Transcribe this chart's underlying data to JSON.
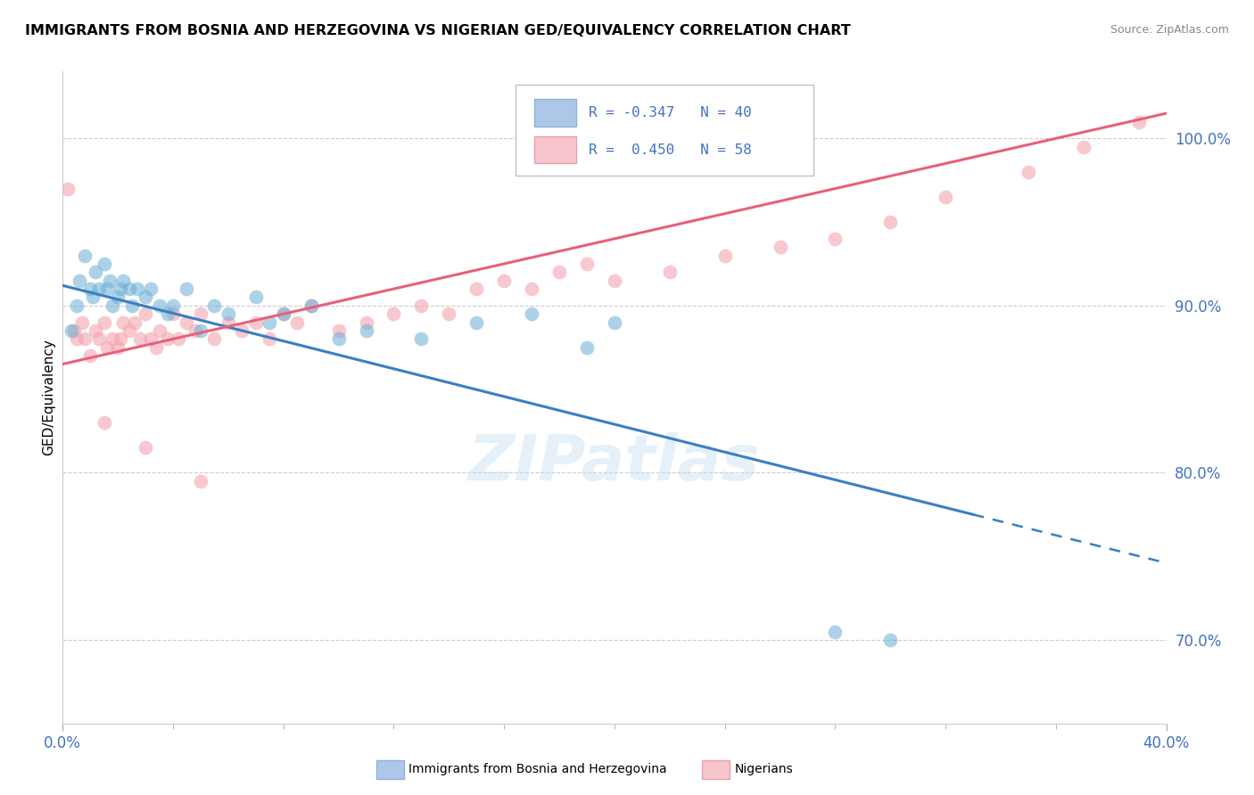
{
  "title": "IMMIGRANTS FROM BOSNIA AND HERZEGOVINA VS NIGERIAN GED/EQUIVALENCY CORRELATION CHART",
  "source": "Source: ZipAtlas.com",
  "ylabel": "GED/Equivalency",
  "yticks": [
    70.0,
    80.0,
    90.0,
    100.0
  ],
  "xlim": [
    0.0,
    40.0
  ],
  "ylim": [
    65.0,
    104.0
  ],
  "blue_R": -0.347,
  "blue_N": 40,
  "pink_R": 0.45,
  "pink_N": 58,
  "blue_color": "#6baed6",
  "pink_color": "#f4a4b0",
  "blue_legend_fill": "#aec6e8",
  "pink_legend_fill": "#f7c5cc",
  "watermark": "ZIPatlas",
  "blue_scatter_x": [
    0.3,
    0.5,
    0.6,
    0.8,
    1.0,
    1.1,
    1.2,
    1.3,
    1.5,
    1.6,
    1.7,
    1.8,
    2.0,
    2.1,
    2.2,
    2.4,
    2.5,
    2.7,
    3.0,
    3.2,
    3.5,
    3.8,
    4.0,
    4.5,
    5.0,
    5.5,
    6.0,
    7.0,
    7.5,
    8.0,
    9.0,
    10.0,
    11.0,
    13.0,
    15.0,
    17.0,
    19.0,
    20.0,
    28.0,
    30.0
  ],
  "blue_scatter_y": [
    88.5,
    90.0,
    91.5,
    93.0,
    91.0,
    90.5,
    92.0,
    91.0,
    92.5,
    91.0,
    91.5,
    90.0,
    90.5,
    91.0,
    91.5,
    91.0,
    90.0,
    91.0,
    90.5,
    91.0,
    90.0,
    89.5,
    90.0,
    91.0,
    88.5,
    90.0,
    89.5,
    90.5,
    89.0,
    89.5,
    90.0,
    88.0,
    88.5,
    88.0,
    89.0,
    89.5,
    87.5,
    89.0,
    70.5,
    70.0
  ],
  "pink_scatter_x": [
    0.2,
    0.4,
    0.5,
    0.7,
    0.8,
    1.0,
    1.2,
    1.3,
    1.5,
    1.6,
    1.8,
    2.0,
    2.1,
    2.2,
    2.4,
    2.6,
    2.8,
    3.0,
    3.2,
    3.4,
    3.5,
    3.8,
    4.0,
    4.2,
    4.5,
    4.8,
    5.0,
    5.5,
    6.0,
    6.5,
    7.0,
    7.5,
    8.0,
    8.5,
    9.0,
    10.0,
    11.0,
    12.0,
    13.0,
    14.0,
    15.0,
    16.0,
    17.0,
    18.0,
    19.0,
    20.0,
    22.0,
    24.0,
    26.0,
    28.0,
    30.0,
    32.0,
    35.0,
    37.0,
    39.0,
    1.5,
    3.0,
    5.0
  ],
  "pink_scatter_y": [
    97.0,
    88.5,
    88.0,
    89.0,
    88.0,
    87.0,
    88.5,
    88.0,
    89.0,
    87.5,
    88.0,
    87.5,
    88.0,
    89.0,
    88.5,
    89.0,
    88.0,
    89.5,
    88.0,
    87.5,
    88.5,
    88.0,
    89.5,
    88.0,
    89.0,
    88.5,
    89.5,
    88.0,
    89.0,
    88.5,
    89.0,
    88.0,
    89.5,
    89.0,
    90.0,
    88.5,
    89.0,
    89.5,
    90.0,
    89.5,
    91.0,
    91.5,
    91.0,
    92.0,
    92.5,
    91.5,
    92.0,
    93.0,
    93.5,
    94.0,
    95.0,
    96.5,
    98.0,
    99.5,
    101.0,
    83.0,
    81.5,
    79.5
  ],
  "blue_line_x0": 0.0,
  "blue_line_y0": 91.2,
  "blue_line_x1": 33.0,
  "blue_line_y1": 77.5,
  "blue_dash_x0": 33.0,
  "blue_dash_y0": 77.5,
  "blue_dash_x1": 40.0,
  "blue_dash_y1": 74.6,
  "pink_line_x0": 0.0,
  "pink_line_y0": 86.5,
  "pink_line_x1": 40.0,
  "pink_line_y1": 101.5
}
